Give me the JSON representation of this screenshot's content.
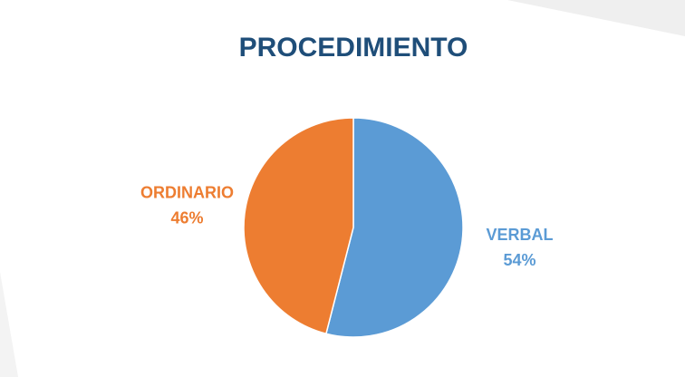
{
  "chart_data": {
    "type": "pie",
    "title": "PROCEDIMIENTO",
    "categories": [
      "VERBAL",
      "ORDINARIO"
    ],
    "values": [
      54,
      46
    ],
    "value_labels": [
      "54%",
      "46%"
    ],
    "colors": [
      "#5b9bd5",
      "#ed7d31"
    ]
  }
}
